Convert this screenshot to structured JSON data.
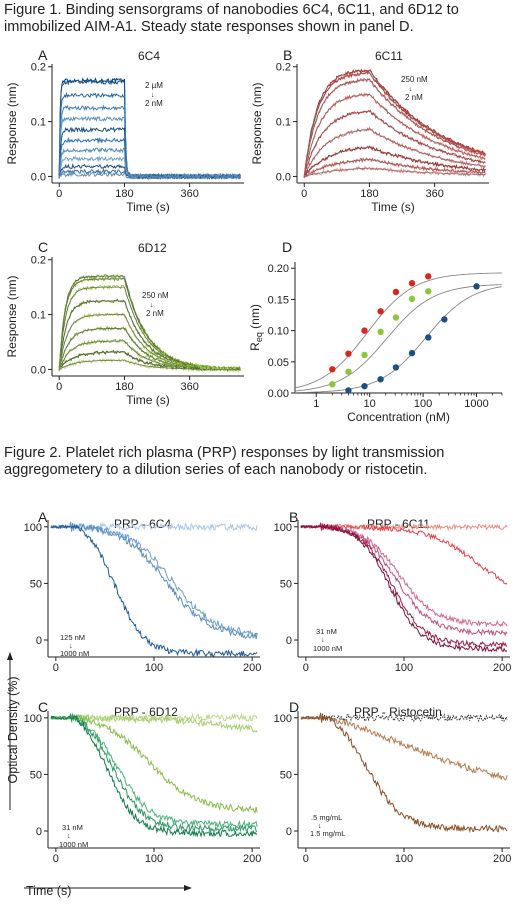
{
  "figure1": {
    "caption": "Figure 1. Binding sensorgrams of nanobodies 6C4, 6C11, and 6D12 to immobilized AIM-A1. Steady state responses shown in panel D."
  },
  "figure2": {
    "caption": "Figure 2. Platelet rich plasma (PRP) responses by light transmission aggregometery to a dilution series of each nanobody or ristocetin."
  },
  "shared_labels": {
    "optical_density": "Optical Density (%)",
    "time_s": "Time (s)"
  },
  "chart_data": [
    {
      "id": "1A",
      "panel": "A",
      "type": "line",
      "title": "6C4",
      "xlabel": "Time (s)",
      "ylabel": "Response (nm)",
      "xlim": [
        -20,
        510
      ],
      "ylim": [
        -0.012,
        0.205
      ],
      "xticks": [
        0,
        180,
        360
      ],
      "yticks": [
        0.0,
        0.1,
        0.2
      ],
      "yticklabels": [
        "0.0",
        "0.1",
        "0.2"
      ],
      "model": "kinetic",
      "association_end": 180,
      "t_end": 500,
      "kon": 0.35,
      "koff": 0.32,
      "noise": 0.0035,
      "plateaus": [
        0.175,
        0.172,
        0.148,
        0.125,
        0.105,
        0.085,
        0.066,
        0.048,
        0.032,
        0.018,
        0.009,
        0.004
      ],
      "colors": [
        "#0b3e6d",
        "#15568c",
        "#2668a3",
        "#3c7db5",
        "#5691c4",
        "#1c4f80",
        "#2f6fab",
        "#4a88bf",
        "#6a9ecb",
        "#244f7c",
        "#3b6e9f",
        "#5b8bb6"
      ],
      "annotation": {
        "top": "2 µM",
        "bottom": "2 nM"
      }
    },
    {
      "id": "1B",
      "panel": "B",
      "type": "line",
      "title": "6C11",
      "xlabel": "Time (s)",
      "ylabel": "Response (nm)",
      "xlim": [
        -20,
        510
      ],
      "ylim": [
        -0.012,
        0.205
      ],
      "xticks": [
        0,
        180,
        360
      ],
      "yticks": [
        0.0,
        0.1,
        0.2
      ],
      "yticklabels": [
        "0.0",
        "0.1",
        "0.2"
      ],
      "model": "kinetic",
      "association_end": 180,
      "t_end": 500,
      "kon": 0.02,
      "koff": 0.0048,
      "noise": 0.003,
      "plateaus": [
        0.195,
        0.19,
        0.178,
        0.152,
        0.122,
        0.09,
        0.058,
        0.035,
        0.018
      ],
      "colors": [
        "#c41e1e",
        "#d12f2f",
        "#dc4a4a",
        "#e25d5d",
        "#c93a3a",
        "#e06c6c",
        "#b51c1c",
        "#d95050",
        "#e88080"
      ],
      "fit_color": "#666666",
      "annotation": {
        "top": "250 nM",
        "bottom": "2 nM"
      }
    },
    {
      "id": "1C",
      "panel": "C",
      "type": "line",
      "title": "6D12",
      "xlabel": "Time (s)",
      "ylabel": "Response (nm)",
      "xlim": [
        -20,
        510
      ],
      "ylim": [
        -0.012,
        0.205
      ],
      "xticks": [
        0,
        180,
        360
      ],
      "yticks": [
        0.0,
        0.1,
        0.2
      ],
      "yticklabels": [
        "0.0",
        "0.1",
        "0.2"
      ],
      "model": "kinetic",
      "association_end": 180,
      "t_end": 500,
      "kon": 0.05,
      "koff": 0.016,
      "noise": 0.003,
      "plateaus": [
        0.17,
        0.165,
        0.15,
        0.125,
        0.1,
        0.075,
        0.052,
        0.032,
        0.017
      ],
      "colors": [
        "#6d9f1a",
        "#83b52a",
        "#97c43a",
        "#5c8e14",
        "#a3cc4c",
        "#78aa24",
        "#8dbd33",
        "#4f7d0f",
        "#b0d660"
      ],
      "fit_color": "#555555",
      "annotation": {
        "top": "250 nM",
        "bottom": "2 nM"
      }
    },
    {
      "id": "1D",
      "panel": "D",
      "type": "scatter",
      "xscale": "log",
      "xlabel": "Concentration (nM)",
      "ylabel": "R_eq (nm)",
      "xlim": [
        0.4,
        3000
      ],
      "ylim": [
        0.0,
        0.21
      ],
      "xticks": [
        1,
        10,
        100,
        1000
      ],
      "yticks": [
        0.0,
        0.05,
        0.1,
        0.15,
        0.2
      ],
      "yticklabels": [
        "0.00",
        "0.05",
        "0.10",
        "0.15",
        "0.20"
      ],
      "xtick_labels": [
        "1",
        "10",
        "100",
        "1000"
      ],
      "series": [
        {
          "color": "#d8281e",
          "fit": {
            "rmax": 0.193,
            "kd": 9
          },
          "x": [
            2,
            4,
            8,
            16,
            31,
            62,
            125
          ],
          "y": [
            0.038,
            0.063,
            0.1,
            0.131,
            0.162,
            0.176,
            0.187
          ]
        },
        {
          "color": "#8cc63f",
          "fit": {
            "rmax": 0.175,
            "kd": 21
          },
          "x": [
            2,
            4,
            8,
            16,
            31,
            62,
            125
          ],
          "y": [
            0.014,
            0.034,
            0.061,
            0.098,
            0.121,
            0.151,
            0.163
          ]
        },
        {
          "color": "#1c4f86",
          "fit": {
            "rmax": 0.177,
            "kd": 112
          },
          "x": [
            4,
            8,
            16,
            31,
            62,
            125,
            250,
            1000
          ],
          "y": [
            0.004,
            0.011,
            0.022,
            0.041,
            0.064,
            0.089,
            0.118,
            0.171
          ]
        }
      ]
    },
    {
      "id": "2A",
      "panel": "A",
      "type": "line",
      "title": "PRP - 6C4",
      "xlabel": "",
      "ylabel": "",
      "xlim": [
        -8,
        208
      ],
      "ylim": [
        -15,
        106
      ],
      "xticks": [
        0,
        100,
        200
      ],
      "yticks": [
        0,
        50,
        100
      ],
      "model": "aggregation",
      "lag": 18,
      "noise": 1.3,
      "traces": [
        {
          "color": "#a9c9e6",
          "onset": 22,
          "mid": 400,
          "rate": 50,
          "final": 93
        },
        {
          "color": "#6f9fd0",
          "onset": 22,
          "mid": 118,
          "rate": 22,
          "final": 4
        },
        {
          "color": "#5d8ec0",
          "onset": 22,
          "mid": 112,
          "rate": 22,
          "final": 2
        },
        {
          "color": "#1d5a9a",
          "onset": 22,
          "mid": 60,
          "rate": 15,
          "final": -12
        }
      ],
      "annotation": {
        "top": "125 nM",
        "bottom": "1000 nM"
      }
    },
    {
      "id": "2B",
      "panel": "B",
      "type": "line",
      "title": "PRP - 6C11",
      "xlabel": "",
      "ylabel": "",
      "xlim": [
        -8,
        208
      ],
      "ylim": [
        -15,
        106
      ],
      "xticks": [
        0,
        100,
        200
      ],
      "yticks": [
        0,
        50,
        100
      ],
      "model": "aggregation",
      "lag": 15,
      "noise": 1.0,
      "traces": [
        {
          "color": "#f08c84",
          "onset": 20,
          "mid": 500,
          "rate": 90,
          "final": 90
        },
        {
          "color": "#e6444a",
          "onset": 20,
          "mid": 175,
          "rate": 25,
          "final": 35
        },
        {
          "color": "#d1688f",
          "onset": 20,
          "mid": 95,
          "rate": 18,
          "final": 14
        },
        {
          "color": "#c3507e",
          "onset": 20,
          "mid": 92,
          "rate": 18,
          "final": 6
        },
        {
          "color": "#9c1c4a",
          "onset": 20,
          "mid": 88,
          "rate": 16,
          "final": -4
        },
        {
          "color": "#80103a",
          "onset": 20,
          "mid": 86,
          "rate": 16,
          "final": -8
        }
      ],
      "annotation": {
        "top": "31 nM",
        "bottom": "1000 nM"
      }
    },
    {
      "id": "2C",
      "panel": "C",
      "type": "line",
      "title": "PRP - 6D12",
      "xlabel": "",
      "ylabel": "",
      "xlim": [
        -8,
        208
      ],
      "ylim": [
        -15,
        106
      ],
      "xticks": [
        0,
        100,
        200
      ],
      "yticks": [
        0,
        50,
        100
      ],
      "model": "aggregation",
      "lag": 15,
      "noise": 1.3,
      "traces": [
        {
          "color": "#b7dc84",
          "onset": 20,
          "mid": 600,
          "rate": 80,
          "final": 97
        },
        {
          "color": "#a6cf6f",
          "onset": 20,
          "mid": 260,
          "rate": 60,
          "final": 62
        },
        {
          "color": "#86be43",
          "onset": 20,
          "mid": 95,
          "rate": 24,
          "final": 18
        },
        {
          "color": "#4fb37a",
          "onset": 20,
          "mid": 62,
          "rate": 17,
          "final": 6
        },
        {
          "color": "#2e9a66",
          "onset": 20,
          "mid": 58,
          "rate": 16,
          "final": 2
        },
        {
          "color": "#137a4a",
          "onset": 20,
          "mid": 52,
          "rate": 15,
          "final": -2
        }
      ],
      "annotation": {
        "top": "31 nM",
        "bottom": "1000 nM"
      }
    },
    {
      "id": "2D",
      "panel": "D",
      "type": "line",
      "title": "PRP - Ristocetin",
      "xlabel": "",
      "ylabel": "",
      "xlim": [
        -8,
        208
      ],
      "ylim": [
        -15,
        106
      ],
      "xticks": [
        0,
        100,
        200
      ],
      "yticks": [
        0,
        50,
        100
      ],
      "model": "aggregation",
      "lag": 15,
      "noise": 1.3,
      "traces": [
        {
          "color": "#2a2a2a",
          "onset": 20,
          "mid": 900,
          "rate": 90,
          "final": 94,
          "style": "dotted"
        },
        {
          "color": "#b87d52",
          "onset": 22,
          "mid": 100,
          "rate": 60,
          "final": 35
        },
        {
          "color": "#8a4e22",
          "onset": 22,
          "mid": 62,
          "rate": 18,
          "final": 2
        }
      ],
      "annotation": {
        "top": ".5 mg/mL",
        "bottom": "1.5 mg/mL"
      }
    }
  ]
}
